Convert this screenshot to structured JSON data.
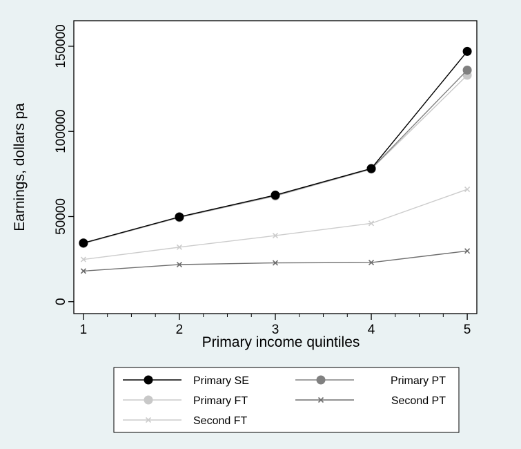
{
  "chart_data": {
    "type": "line",
    "title": "",
    "xlabel": "Primary income quintiles",
    "ylabel": "Earnings, dollars pa",
    "x": [
      1,
      2,
      3,
      4,
      5
    ],
    "xlim": [
      0.9,
      5.1
    ],
    "ylim": [
      -7000,
      165000
    ],
    "yticks": [
      0,
      50000,
      100000,
      150000
    ],
    "xticks": [
      1,
      2,
      3,
      4,
      5
    ],
    "grid": false,
    "legend_position": "bottom",
    "series": [
      {
        "name": "Primary SE",
        "values": [
          34500,
          49800,
          62600,
          78200,
          147000
        ],
        "color": "#000000",
        "marker": "circle"
      },
      {
        "name": "Primary PT",
        "values": [
          34300,
          49600,
          62300,
          78000,
          136000
        ],
        "color": "#808080",
        "marker": "circle"
      },
      {
        "name": "Primary FT",
        "values": [
          34200,
          49400,
          62000,
          77800,
          133000
        ],
        "color": "#c8c8c8",
        "marker": "circle"
      },
      {
        "name": "Second PT",
        "values": [
          18000,
          21800,
          22800,
          23000,
          29800
        ],
        "color": "#6e6e6e",
        "marker": "x"
      },
      {
        "name": "Second FT",
        "values": [
          24800,
          32000,
          38800,
          46000,
          66000
        ],
        "color": "#cccccc",
        "marker": "x"
      }
    ]
  }
}
